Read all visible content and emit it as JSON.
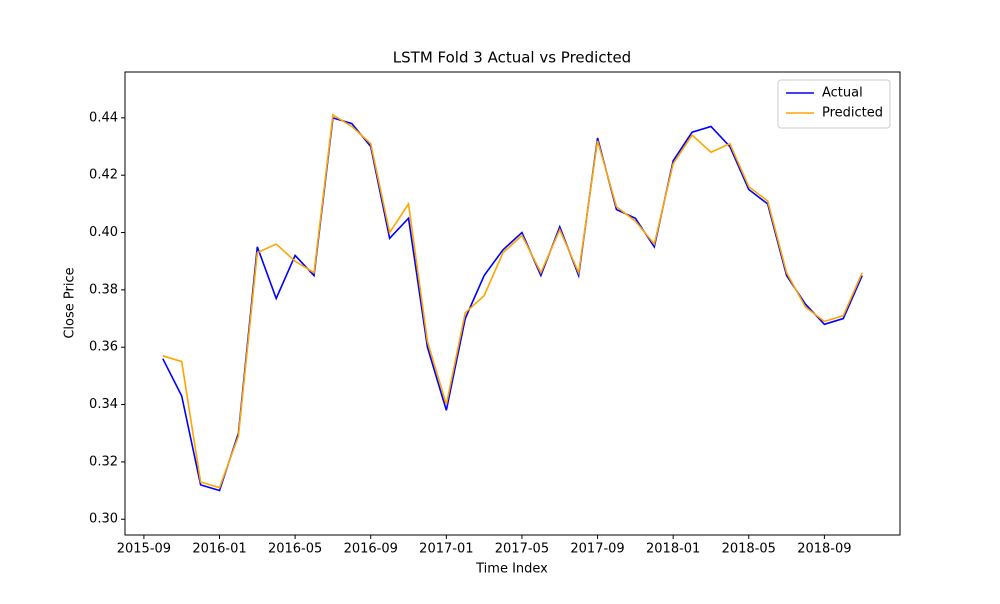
{
  "chart_data": {
    "type": "line",
    "title": "LSTM Fold 3 Actual vs Predicted",
    "x_label": "Time Index",
    "y_label": "Close Price",
    "x": [
      "2015-10",
      "2015-11",
      "2015-12",
      "2016-01",
      "2016-02",
      "2016-03",
      "2016-04",
      "2016-05",
      "2016-06",
      "2016-07",
      "2016-08",
      "2016-09",
      "2016-10",
      "2016-11",
      "2016-12",
      "2017-01",
      "2017-02",
      "2017-03",
      "2017-04",
      "2017-05",
      "2017-06",
      "2017-07",
      "2017-08",
      "2017-09",
      "2017-10",
      "2017-11",
      "2017-12",
      "2018-01",
      "2018-02",
      "2018-03",
      "2018-04",
      "2018-05",
      "2018-06",
      "2018-07",
      "2018-08",
      "2018-09",
      "2018-10",
      "2018-11"
    ],
    "series": [
      {
        "name": "Actual",
        "color": "#0000ff",
        "values": [
          0.356,
          0.343,
          0.312,
          0.31,
          0.33,
          0.395,
          0.377,
          0.392,
          0.385,
          0.44,
          0.438,
          0.43,
          0.398,
          0.405,
          0.36,
          0.338,
          0.37,
          0.385,
          0.394,
          0.4,
          0.385,
          0.402,
          0.385,
          0.433,
          0.408,
          0.405,
          0.395,
          0.425,
          0.435,
          0.437,
          0.43,
          0.415,
          0.41,
          0.385,
          0.375,
          0.368,
          0.37,
          0.385
        ]
      },
      {
        "name": "Predicted",
        "color": "#ffa500",
        "values": [
          0.357,
          0.355,
          0.313,
          0.311,
          0.329,
          0.393,
          0.396,
          0.39,
          0.386,
          0.441,
          0.437,
          0.431,
          0.4,
          0.41,
          0.362,
          0.34,
          0.372,
          0.378,
          0.393,
          0.399,
          0.386,
          0.401,
          0.386,
          0.432,
          0.409,
          0.404,
          0.396,
          0.424,
          0.434,
          0.428,
          0.431,
          0.416,
          0.411,
          0.386,
          0.374,
          0.369,
          0.371,
          0.386
        ]
      }
    ],
    "xlim": [
      "2015-08",
      "2019-01"
    ],
    "xticks": [
      "2015-09",
      "2016-01",
      "2016-05",
      "2016-09",
      "2017-01",
      "2017-05",
      "2017-09",
      "2018-01",
      "2018-05",
      "2018-09"
    ],
    "ylim": [
      0.2945,
      0.456
    ],
    "yticks": [
      {
        "value": 0.3,
        "label": "0.30"
      },
      {
        "value": 0.32,
        "label": "0.32"
      },
      {
        "value": 0.34,
        "label": "0.34"
      },
      {
        "value": 0.36,
        "label": "0.36"
      },
      {
        "value": 0.38,
        "label": "0.38"
      },
      {
        "value": 0.4,
        "label": "0.40"
      },
      {
        "value": 0.42,
        "label": "0.42"
      },
      {
        "value": 0.44,
        "label": "0.44"
      }
    ],
    "legend": "upper right"
  }
}
